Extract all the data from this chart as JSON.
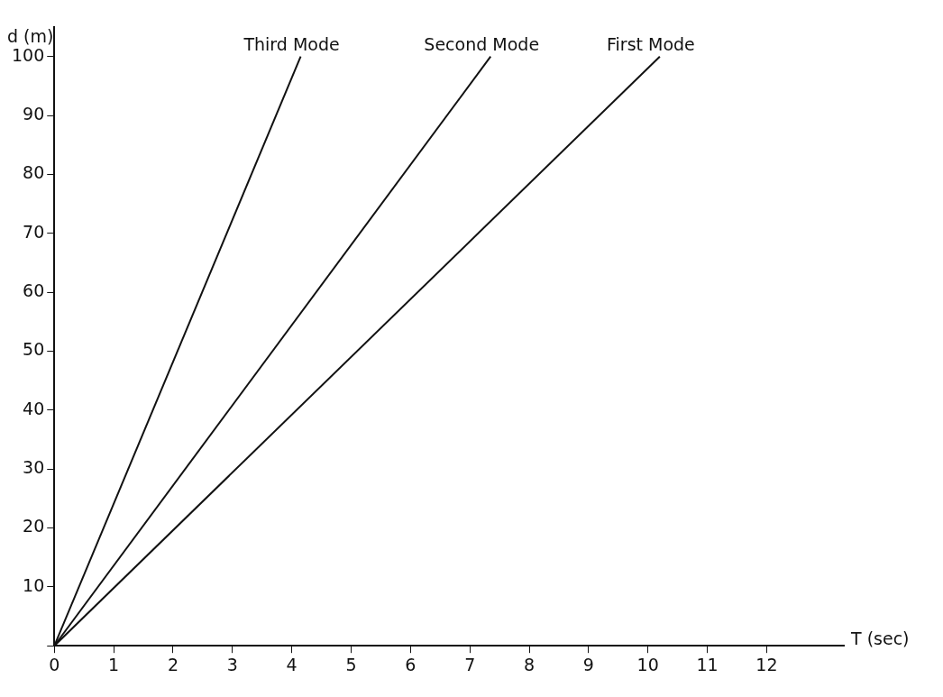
{
  "chart_data": {
    "type": "line",
    "xlabel": "T (sec)",
    "ylabel": "d (m)",
    "xlim": [
      0,
      13.3
    ],
    "xticks": [
      0,
      1,
      2,
      3,
      4,
      5,
      6,
      7,
      8,
      9,
      10,
      11,
      12
    ],
    "ylim": [
      0,
      105
    ],
    "yticks": [
      {
        "value": 0,
        "label": null
      },
      10,
      20,
      30,
      40,
      50,
      60,
      70,
      80,
      90,
      100
    ],
    "grid": false,
    "legend": false,
    "marker": "none",
    "line_style": "solid",
    "series": [
      {
        "name": "Third Mode",
        "color": "#111111",
        "x": [
          0,
          4.15
        ],
        "values": [
          0,
          100
        ]
      },
      {
        "name": "Second Mode",
        "color": "#111111",
        "x": [
          0,
          7.35
        ],
        "values": [
          0,
          100
        ]
      },
      {
        "name": "First Mode",
        "color": "#111111",
        "x": [
          0,
          10.2
        ],
        "values": [
          0,
          100
        ]
      }
    ]
  }
}
